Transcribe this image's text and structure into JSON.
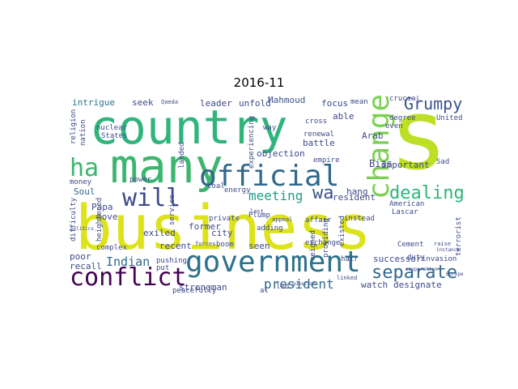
{
  "title": "2016-11",
  "colors": {
    "yellow": "#dde318",
    "lime": "#bddf26",
    "green": "#2fb47c",
    "teal": "#22a884",
    "cyan": "#1f9e89",
    "blue": "#2c728e",
    "navy": "#3b528b",
    "indigo": "#472d7b",
    "purple": "#440154",
    "light": "#7ad151"
  },
  "words": [
    "business",
    "country",
    "s",
    "many",
    "government",
    "official",
    "change",
    "conflict",
    "will",
    "separate",
    "dealing",
    "Grumpy",
    "ha",
    "wa",
    "meeting",
    "president",
    "Indian",
    "successor",
    "designate",
    "Mahmoud",
    "intrigue",
    "leader",
    "unfold",
    "seek",
    "focus",
    "Soul",
    "Papa",
    "move",
    "former",
    "objection",
    "resident",
    "Bias",
    "Arab",
    "able",
    "battle",
    "important",
    "hang",
    "strongman",
    "recall",
    "poor",
    "watch",
    "exiled",
    "recent",
    "city",
    "private",
    "boom",
    "exchange",
    "seen",
    "Plump",
    "adding",
    "crucial",
    "United",
    "degree",
    "nuclear",
    "States",
    "religion",
    "nation",
    "money",
    "power",
    "coal",
    "energy",
    "complex",
    "heightened",
    "pushing",
    "put",
    "peacefully",
    "al",
    "led",
    "reigned",
    "providing",
    "existed",
    "Lascar",
    "American",
    "Cement",
    "duty",
    "terrorist",
    "invasion",
    "hair",
    "instead",
    "affair",
    "renewal",
    "cross",
    "empire",
    "Sad",
    "even",
    "mean",
    "way",
    "experiencing",
    "landed",
    "service",
    "difficulty",
    "forces",
    "appeal",
    "linked",
    "raise",
    "Qaeda",
    "Europe",
    "cooperation",
    "politics",
    "question",
    "instance",
    "last"
  ]
}
